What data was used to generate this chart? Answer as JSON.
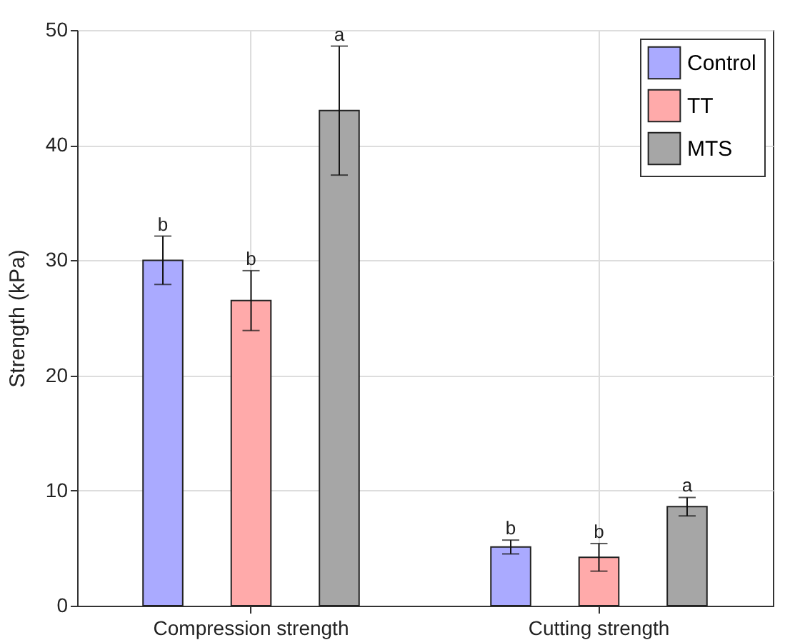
{
  "chart_data": {
    "type": "bar",
    "ylabel": "Strength (kPa)",
    "categories": [
      "Compression strength",
      "Cutting strength"
    ],
    "series": [
      {
        "name": "Control",
        "color": "#aaaaff",
        "values": [
          30,
          5.1
        ],
        "errors": [
          2.1,
          0.6
        ]
      },
      {
        "name": "TT",
        "color": "#ffaaaa",
        "values": [
          26.5,
          4.2
        ],
        "errors": [
          2.6,
          1.2
        ]
      },
      {
        "name": "MTS",
        "color": "#a6a6a6",
        "values": [
          43,
          8.6
        ],
        "errors": [
          5.6,
          0.8
        ]
      }
    ],
    "annotations": [
      "b",
      "b",
      "a",
      "b",
      "b",
      "a"
    ],
    "ylim": [
      0,
      50
    ],
    "yticks": [
      0,
      10,
      20,
      30,
      40,
      50
    ],
    "grid": true,
    "legend": "top right"
  }
}
